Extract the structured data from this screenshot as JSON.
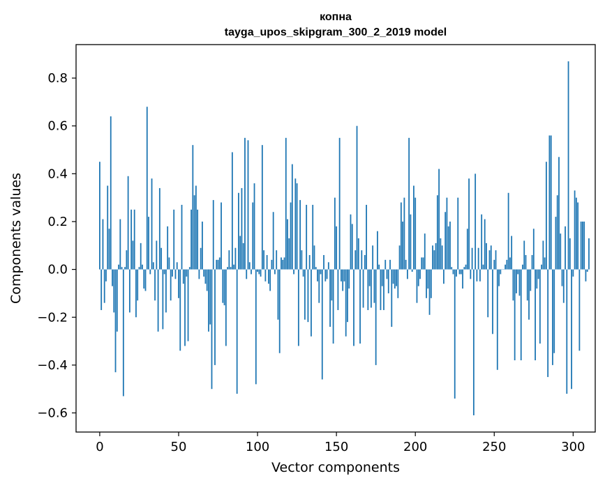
{
  "chart_data": {
    "type": "bar",
    "title_line1": "копна",
    "title_line2": "tayga_upos_skipgram_300_2_2019 model",
    "xlabel": "Vector components",
    "ylabel": "Components values",
    "xlim": [
      -15,
      314
    ],
    "ylim": [
      -0.68,
      0.94
    ],
    "xticks": [
      0,
      50,
      100,
      150,
      200,
      250,
      300
    ],
    "xtick_labels": [
      "0",
      "50",
      "100",
      "150",
      "200",
      "250",
      "300"
    ],
    "yticks": [
      -0.6,
      -0.4,
      -0.2,
      0.0,
      0.2,
      0.4,
      0.6,
      0.8
    ],
    "ytick_labels": [
      "−0.6",
      "−0.4",
      "−0.2",
      "0.0",
      "0.2",
      "0.4",
      "0.6",
      "0.8"
    ],
    "bar_color": "#1f77b4",
    "grid": false,
    "values": [
      0.45,
      -0.17,
      0.21,
      -0.14,
      -0.05,
      0.35,
      0.17,
      0.64,
      -0.07,
      -0.18,
      -0.43,
      -0.26,
      0.02,
      0.21,
      0.01,
      -0.53,
      0.01,
      0.08,
      0.39,
      -0.18,
      0.25,
      0.12,
      0.25,
      -0.2,
      -0.13,
      0.01,
      0.11,
      0.02,
      -0.08,
      -0.09,
      0.68,
      0.22,
      -0.02,
      0.38,
      0.03,
      -0.13,
      0.12,
      -0.26,
      0.34,
      0.09,
      -0.25,
      -0.02,
      -0.18,
      0.18,
      0.05,
      -0.13,
      -0.03,
      0.25,
      -0.04,
      0.03,
      -0.12,
      -0.34,
      0.27,
      -0.06,
      -0.32,
      -0.03,
      -0.3,
      0.01,
      0.25,
      0.52,
      0.31,
      0.35,
      0.25,
      -0.04,
      0.09,
      0.2,
      -0.03,
      -0.06,
      -0.09,
      -0.26,
      -0.23,
      -0.5,
      0.29,
      -0.4,
      0.04,
      0.04,
      0.05,
      0.28,
      -0.14,
      -0.15,
      -0.32,
      0.01,
      0.08,
      0.01,
      0.49,
      0.02,
      0.09,
      -0.52,
      0.32,
      0.14,
      0.34,
      0.11,
      0.55,
      -0.04,
      0.54,
      0.03,
      -0.02,
      0.28,
      0.36,
      -0.48,
      -0.01,
      -0.02,
      -0.03,
      0.52,
      0.08,
      -0.05,
      0.06,
      -0.06,
      -0.09,
      0.04,
      0.24,
      -0.02,
      0.08,
      -0.21,
      -0.35,
      0.05,
      0.04,
      0.05,
      0.55,
      0.21,
      0.13,
      0.28,
      0.44,
      -0.02,
      0.38,
      0.36,
      -0.32,
      0.29,
      0.08,
      -0.03,
      -0.21,
      0.27,
      -0.22,
      0.06,
      -0.28,
      0.27,
      0.1,
      0.01,
      -0.05,
      -0.14,
      -0.02,
      -0.46,
      0.06,
      -0.05,
      -0.04,
      0.03,
      -0.24,
      -0.13,
      -0.31,
      0.3,
      0.18,
      -0.17,
      0.55,
      -0.05,
      -0.09,
      -0.05,
      -0.28,
      -0.22,
      -0.08,
      0.23,
      0.19,
      -0.32,
      0.08,
      0.6,
      0.13,
      -0.31,
      0.08,
      -0.16,
      0.06,
      0.27,
      -0.17,
      -0.07,
      -0.16,
      0.1,
      -0.14,
      -0.4,
      0.16,
      0.02,
      -0.17,
      -0.07,
      -0.17,
      0.04,
      -0.04,
      -0.1,
      0.04,
      -0.24,
      -0.06,
      -0.08,
      -0.07,
      -0.12,
      0.1,
      0.28,
      0.2,
      0.3,
      0.04,
      -0.04,
      0.55,
      0.23,
      -0.01,
      0.35,
      0.3,
      -0.14,
      -0.07,
      -0.04,
      0.05,
      0.05,
      0.15,
      -0.12,
      -0.08,
      -0.19,
      -0.12,
      0.1,
      0.08,
      0.11,
      0.31,
      0.42,
      0.13,
      0.1,
      -0.06,
      0.24,
      0.3,
      0.18,
      0.2,
      0.01,
      -0.02,
      -0.54,
      -0.03,
      0.3,
      -0.02,
      -0.02,
      -0.08,
      0.01,
      0.02,
      0.17,
      0.38,
      -0.04,
      0.09,
      -0.61,
      0.4,
      -0.05,
      0.09,
      -0.05,
      0.23,
      0.02,
      0.21,
      0.11,
      -0.2,
      0.08,
      0.1,
      -0.27,
      0.04,
      0.08,
      -0.42,
      -0.07,
      -0.02,
      0.0,
      0.0,
      0.02,
      0.04,
      0.32,
      0.05,
      0.14,
      -0.13,
      -0.38,
      -0.1,
      -0.02,
      -0.11,
      -0.38,
      0.02,
      0.12,
      0.06,
      -0.13,
      -0.21,
      -0.09,
      0.06,
      0.17,
      -0.38,
      -0.08,
      -0.04,
      -0.31,
      0.02,
      0.12,
      0.05,
      0.45,
      -0.45,
      0.56,
      0.56,
      -0.4,
      -0.35,
      0.22,
      0.31,
      0.47,
      0.15,
      -0.07,
      -0.14,
      0.18,
      -0.52,
      0.87,
      0.13,
      -0.5,
      -0.03,
      0.33,
      0.3,
      0.28,
      -0.34,
      0.2,
      0.2,
      0.2,
      -0.05,
      -0.01,
      0.13
    ]
  }
}
